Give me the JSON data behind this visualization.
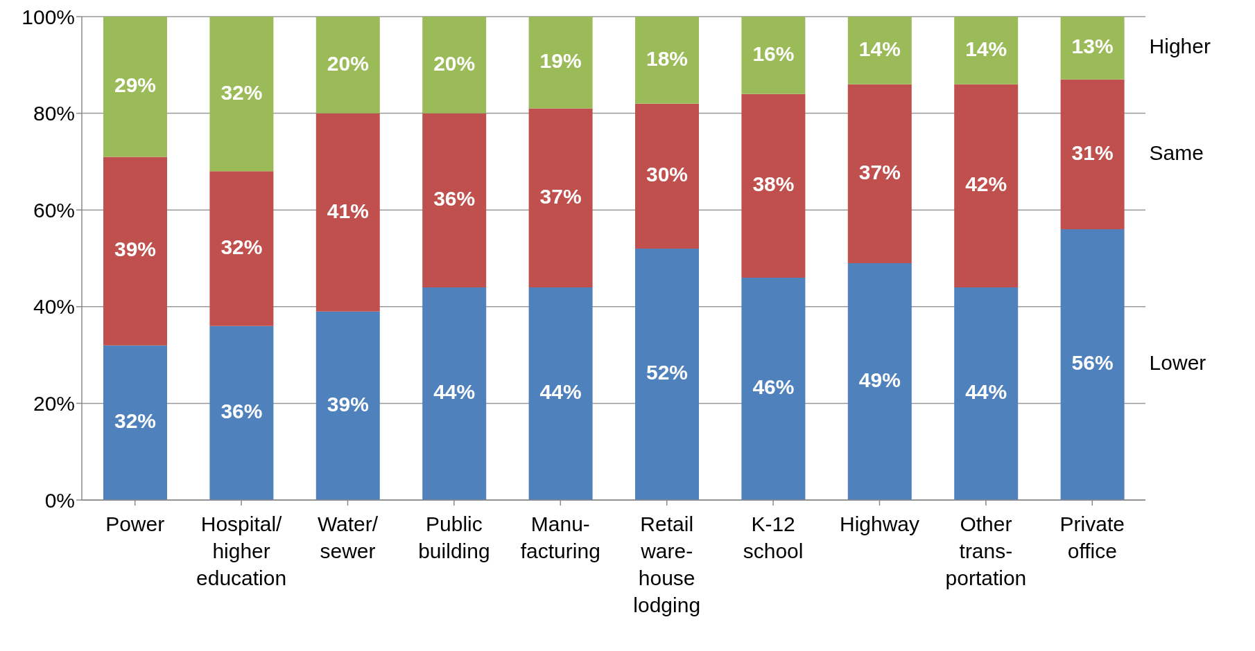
{
  "chart_data": {
    "type": "bar",
    "stacked": true,
    "grid": "y",
    "legend": "right",
    "categories": [
      "Power",
      "Hospital/\nhigher\neducation",
      "Water/\nsewer",
      "Public\nbuilding",
      "Manu-\nfacturing",
      "Retail\nware-\nhouse\nlodging",
      "K-12\nschool",
      "Highway",
      "Other\ntrans-\nportation",
      "Private\noffice"
    ],
    "series": [
      {
        "name": "Lower",
        "color": "#4f81bd",
        "values": [
          32,
          36,
          39,
          44,
          44,
          52,
          46,
          49,
          44,
          56
        ],
        "value_labels": [
          "32%",
          "36%",
          "39%",
          "44%",
          "44%",
          "52%",
          "46%",
          "49%",
          "44%",
          "56%"
        ]
      },
      {
        "name": "Same",
        "color": "#c0504d",
        "values": [
          39,
          32,
          41,
          36,
          37,
          30,
          38,
          37,
          42,
          31
        ],
        "value_labels": [
          "39%",
          "32%",
          "41%",
          "36%",
          "37%",
          "30%",
          "38%",
          "37%",
          "42%",
          "31%"
        ]
      },
      {
        "name": "Higher",
        "color": "#9bbb59",
        "values": [
          29,
          32,
          20,
          20,
          19,
          18,
          16,
          14,
          14,
          13
        ],
        "value_labels": [
          "29%",
          "32%",
          "20%",
          "20%",
          "19%",
          "18%",
          "16%",
          "14%",
          "14%",
          "13%"
        ]
      }
    ],
    "ylim": [
      0,
      100
    ],
    "yticks": [
      {
        "value": 0,
        "label": "0%"
      },
      {
        "value": 20,
        "label": "20%"
      },
      {
        "value": 40,
        "label": "40%"
      },
      {
        "value": 60,
        "label": "60%"
      },
      {
        "value": 80,
        "label": "80%"
      },
      {
        "value": 100,
        "label": "100%"
      }
    ]
  }
}
